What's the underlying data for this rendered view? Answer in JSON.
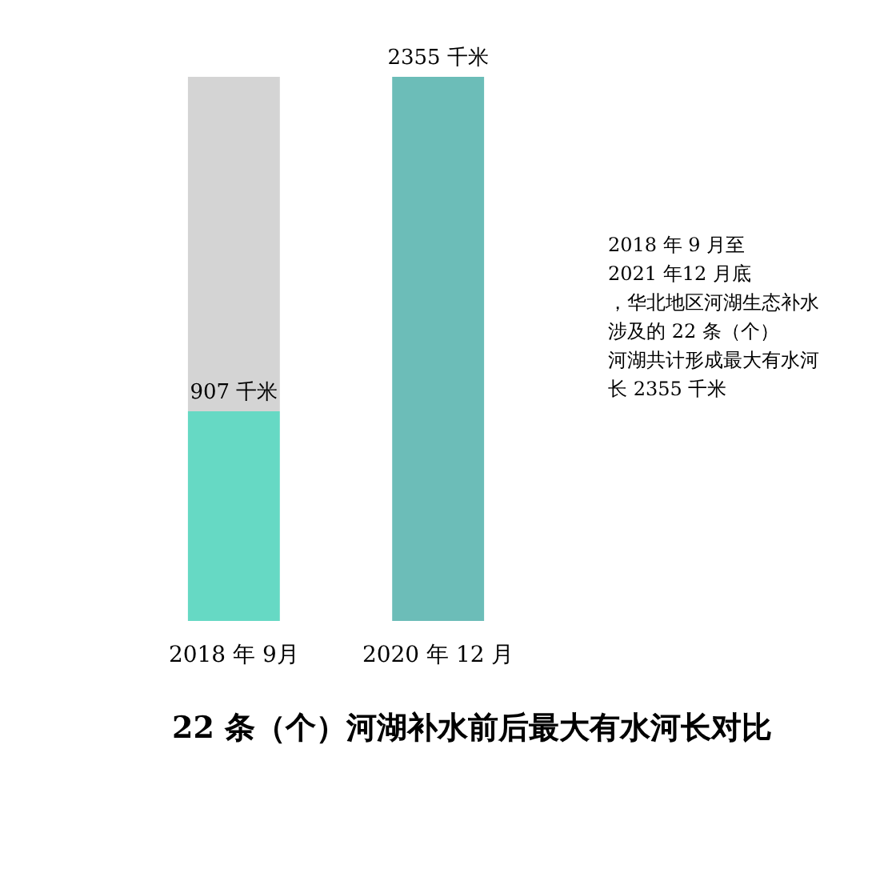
{
  "chart_data": {
    "type": "bar",
    "title": "22 条（个）河湖补水前后最大有水河长对比",
    "categories": [
      "2018 年 9月",
      "2020 年 12 月"
    ],
    "stacked": true,
    "series": [
      {
        "colors": [
          "#66d9c4",
          "#6cbdb8"
        ],
        "values": [
          907,
          2355
        ],
        "value_labels": [
          "907 千米",
          "2355 千米"
        ]
      },
      {
        "color": "#d4d4d4",
        "values": [
          1448,
          null
        ]
      }
    ],
    "annotations": [
      "2018 年 9 月至2021 年12 月底，华北地区河湖生态补水涉及的 22 条（个）河湖共计形成最大有水河长 2355 千米"
    ]
  }
}
